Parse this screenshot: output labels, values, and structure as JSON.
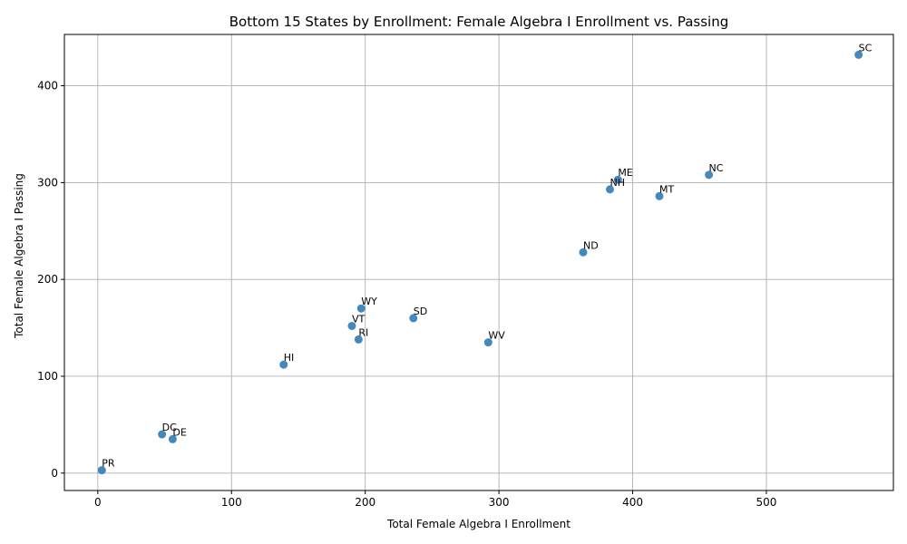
{
  "chart_data": {
    "type": "scatter",
    "title": "Bottom 15 States by Enrollment: Female Algebra I Enrollment vs. Passing",
    "xlabel": "Total Female Algebra I Enrollment",
    "ylabel": "Total Female Algebra I Passing",
    "xlim": [
      -25,
      595
    ],
    "ylim": [
      -18,
      453
    ],
    "xticks": [
      0,
      100,
      200,
      300,
      400,
      500
    ],
    "yticks": [
      0,
      100,
      200,
      300,
      400
    ],
    "grid": true,
    "point_color": "#3a83bb",
    "points": [
      {
        "label": "PR",
        "x": 3,
        "y": 3
      },
      {
        "label": "DC",
        "x": 48,
        "y": 40
      },
      {
        "label": "DE",
        "x": 56,
        "y": 35
      },
      {
        "label": "HI",
        "x": 139,
        "y": 112
      },
      {
        "label": "VT",
        "x": 190,
        "y": 152
      },
      {
        "label": "RI",
        "x": 195,
        "y": 138
      },
      {
        "label": "WY",
        "x": 197,
        "y": 170
      },
      {
        "label": "SD",
        "x": 236,
        "y": 160
      },
      {
        "label": "WV",
        "x": 292,
        "y": 135
      },
      {
        "label": "ND",
        "x": 363,
        "y": 228
      },
      {
        "label": "NH",
        "x": 383,
        "y": 293
      },
      {
        "label": "ME",
        "x": 389,
        "y": 303
      },
      {
        "label": "MT",
        "x": 420,
        "y": 286
      },
      {
        "label": "NC",
        "x": 457,
        "y": 308
      },
      {
        "label": "SC",
        "x": 569,
        "y": 432
      }
    ]
  }
}
